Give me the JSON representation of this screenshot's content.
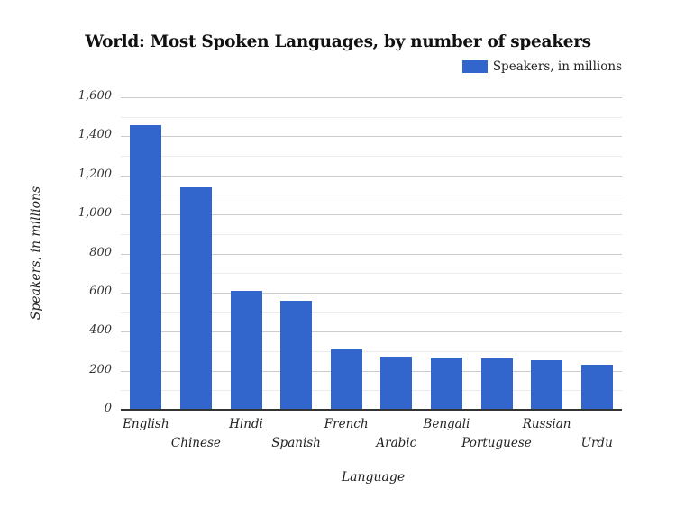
{
  "chart_data": {
    "type": "bar",
    "title": "World: Most Spoken Languages, by number of speakers",
    "xlabel": "Language",
    "ylabel": "Speakers, in millions",
    "categories": [
      "English",
      "Chinese",
      "Hindi",
      "Spanish",
      "French",
      "Arabic",
      "Bengali",
      "Portuguese",
      "Russian",
      "Urdu"
    ],
    "series": [
      {
        "name": "Speakers, in millions",
        "color": "#3366cc",
        "values": [
          1452,
          1134,
          604,
          553,
          304,
          267,
          265,
          258,
          249,
          226
        ]
      }
    ],
    "ylim": [
      0,
      1600
    ],
    "yticks": [
      "0",
      "200",
      "400",
      "600",
      "800",
      "1,000",
      "1,200",
      "1,400",
      "1,600"
    ],
    "grid": true,
    "legend_position": "top-right"
  }
}
